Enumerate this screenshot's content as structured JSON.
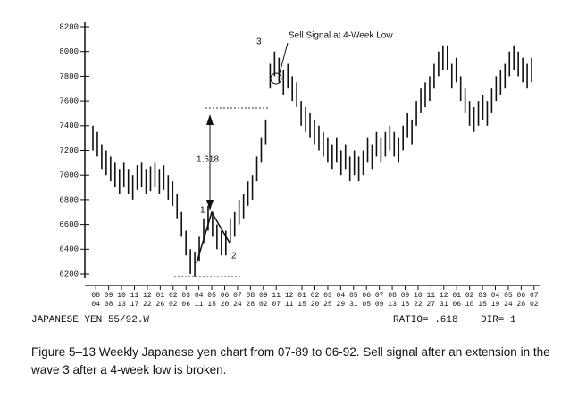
{
  "chart_data": {
    "type": "hlbar",
    "annotations": [
      "Sell Signal at 4-Week Low",
      "3",
      "1.618",
      "1",
      "2"
    ],
    "footer_left": "JAPANESE YEN  55/92.W",
    "footer_ratio": "RATIO= .618",
    "footer_dir": "DIR=+1",
    "caption": "Figure 5–13   Weekly Japanese yen chart from 07-89 to 06-92. Sell signal after an extension in the wave 3 after a 4-week low is broken.",
    "xlim": [
      0,
      100
    ],
    "ylim": [
      6200,
      8200
    ],
    "yticks": [
      6200,
      6400,
      6600,
      6800,
      7000,
      7200,
      7400,
      7600,
      7800,
      8000,
      8200
    ],
    "xlabels_top": [
      "08",
      "09",
      "10",
      "11",
      "12",
      "01",
      "02",
      "03",
      "04",
      "05",
      "06",
      "07",
      "08",
      "09",
      "11",
      "12",
      "01",
      "02",
      "03",
      "04",
      "05",
      "06",
      "07",
      "08",
      "09",
      "10",
      "11",
      "12",
      "01",
      "02",
      "03",
      "04",
      "05",
      "06",
      "07"
    ],
    "xlabels_bottom": [
      "04",
      "08",
      "13",
      "17",
      "22",
      "26",
      "02",
      "06",
      "11",
      "15",
      "20",
      "24",
      "28",
      "02",
      "07",
      "11",
      "15",
      "20",
      "25",
      "29",
      "31",
      "05",
      "09",
      "13",
      "18",
      "22",
      "27",
      "31",
      "06",
      "10",
      "15",
      "19",
      "24",
      "28",
      "02"
    ],
    "high": [
      7400,
      7350,
      7250,
      7200,
      7150,
      7100,
      7050,
      7100,
      7050,
      7000,
      7080,
      7100,
      7050,
      7070,
      7100,
      7050,
      7080,
      7000,
      6950,
      6850,
      6700,
      6550,
      6400,
      6380,
      6500,
      6650,
      6750,
      6700,
      6600,
      6550,
      6550,
      6650,
      6700,
      6800,
      6850,
      6950,
      7000,
      7150,
      7300,
      7450,
      7900,
      8000,
      7950,
      7850,
      7900,
      7800,
      7750,
      7600,
      7550,
      7500,
      7450,
      7400,
      7350,
      7300,
      7250,
      7300,
      7200,
      7250,
      7150,
      7200,
      7150,
      7200,
      7300,
      7250,
      7350,
      7300,
      7350,
      7400,
      7350,
      7300,
      7400,
      7500,
      7450,
      7600,
      7700,
      7750,
      7800,
      7900,
      8000,
      8050,
      8050,
      7900,
      7950,
      7800,
      7700,
      7600,
      7550,
      7600,
      7650,
      7600,
      7700,
      7800,
      7850,
      7900,
      8000,
      8050,
      8000,
      7950,
      7900,
      7950
    ],
    "low": [
      7200,
      7150,
      7050,
      7000,
      6950,
      6900,
      6850,
      6900,
      6850,
      6800,
      6880,
      6900,
      6850,
      6870,
      6900,
      6850,
      6880,
      6800,
      6750,
      6650,
      6500,
      6350,
      6200,
      6180,
      6300,
      6450,
      6550,
      6500,
      6400,
      6350,
      6350,
      6450,
      6500,
      6600,
      6650,
      6750,
      6800,
      6950,
      7100,
      7250,
      7700,
      7800,
      7750,
      7650,
      7700,
      7600,
      7550,
      7400,
      7350,
      7300,
      7250,
      7200,
      7150,
      7100,
      7050,
      7100,
      7000,
      7050,
      6950,
      7000,
      6950,
      7000,
      7100,
      7050,
      7150,
      7100,
      7150,
      7200,
      7150,
      7100,
      7200,
      7300,
      7250,
      7400,
      7500,
      7550,
      7600,
      7700,
      7800,
      7850,
      7850,
      7700,
      7750,
      7600,
      7500,
      7400,
      7350,
      7400,
      7450,
      7400,
      7500,
      7600,
      7650,
      7700,
      7800,
      7850,
      7800,
      7750,
      7700,
      7750
    ]
  }
}
